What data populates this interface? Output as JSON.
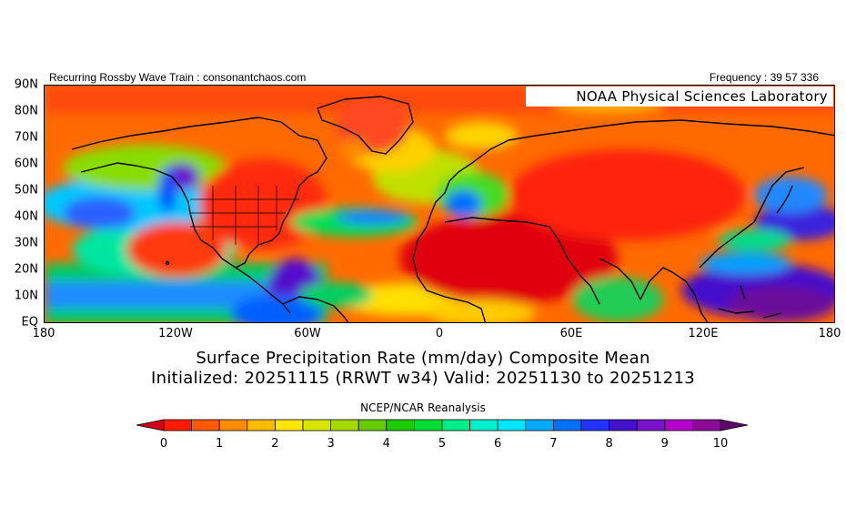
{
  "header": {
    "left_text": "Recurring Rossby Wave Train : consonantchaos.com",
    "right_text": "Frequency : 39 57 336",
    "lab_label": "NOAA Physical Sciences Laboratory"
  },
  "map": {
    "lat_labels": [
      "90N",
      "80N",
      "70N",
      "60N",
      "50N",
      "40N",
      "30N",
      "20N",
      "10N",
      "EQ"
    ],
    "lon_labels": [
      "180",
      "120W",
      "60W",
      "0",
      "60E",
      "120E",
      "180"
    ],
    "extent": {
      "lon_min": -180,
      "lon_max": 180,
      "lat_min": 0,
      "lat_max": 90
    }
  },
  "title": {
    "line1": "Surface Precipitation Rate (mm/day) Composite Mean",
    "line2": "Initialized: 20251115 (RRWT w34) Valid: 20251130 to 20251213"
  },
  "dataset_label": "NCEP/NCAR Reanalysis",
  "colorbar": {
    "tick_labels": [
      "0",
      "1",
      "2",
      "3",
      "4",
      "5",
      "6",
      "7",
      "8",
      "9",
      "10"
    ],
    "colors": [
      "#d4001a",
      "#ff1a00",
      "#ff5a00",
      "#ff8c00",
      "#ffbb00",
      "#ffe600",
      "#d9e600",
      "#a6d900",
      "#66cc00",
      "#1acc00",
      "#00dd33",
      "#00ee88",
      "#00f2cc",
      "#00e6ff",
      "#00aaff",
      "#0070ff",
      "#2233ff",
      "#4411cc",
      "#7a11cc",
      "#b300cc",
      "#8a0a9a",
      "#5c0a6a"
    ],
    "min": 0,
    "max": 10
  }
}
